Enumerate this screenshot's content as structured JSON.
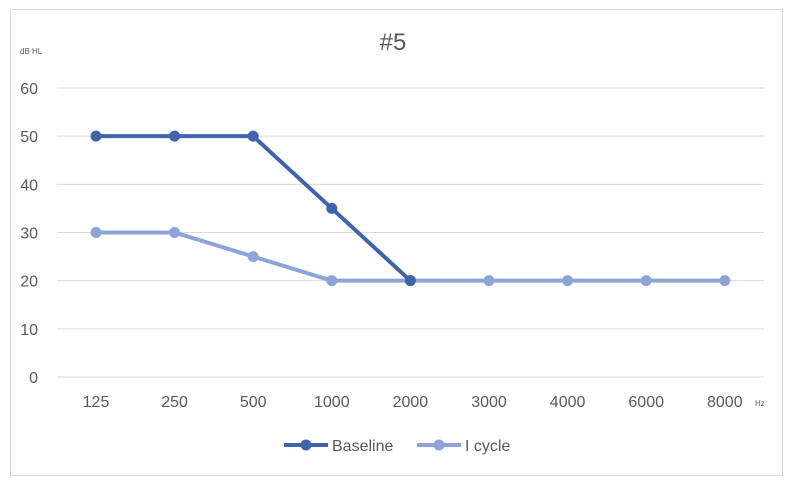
{
  "chart_data": {
    "type": "line",
    "title": "#5",
    "ylabel": "dB HL",
    "xlabel": "Hz",
    "categories": [
      "125",
      "250",
      "500",
      "1000",
      "2000",
      "3000",
      "4000",
      "6000",
      "8000"
    ],
    "ylim": [
      0,
      60
    ],
    "yticks": [
      0,
      10,
      20,
      30,
      40,
      50,
      60
    ],
    "grid": true,
    "legend_position": "bottom",
    "series": [
      {
        "name": "Baseline",
        "color": "#3f63ad",
        "values": [
          50,
          50,
          50,
          35,
          20,
          null,
          null,
          null,
          null
        ]
      },
      {
        "name": "I cycle",
        "color": "#8ea3d8",
        "values": [
          30,
          30,
          25,
          20,
          20,
          20,
          20,
          20,
          20
        ]
      }
    ]
  }
}
